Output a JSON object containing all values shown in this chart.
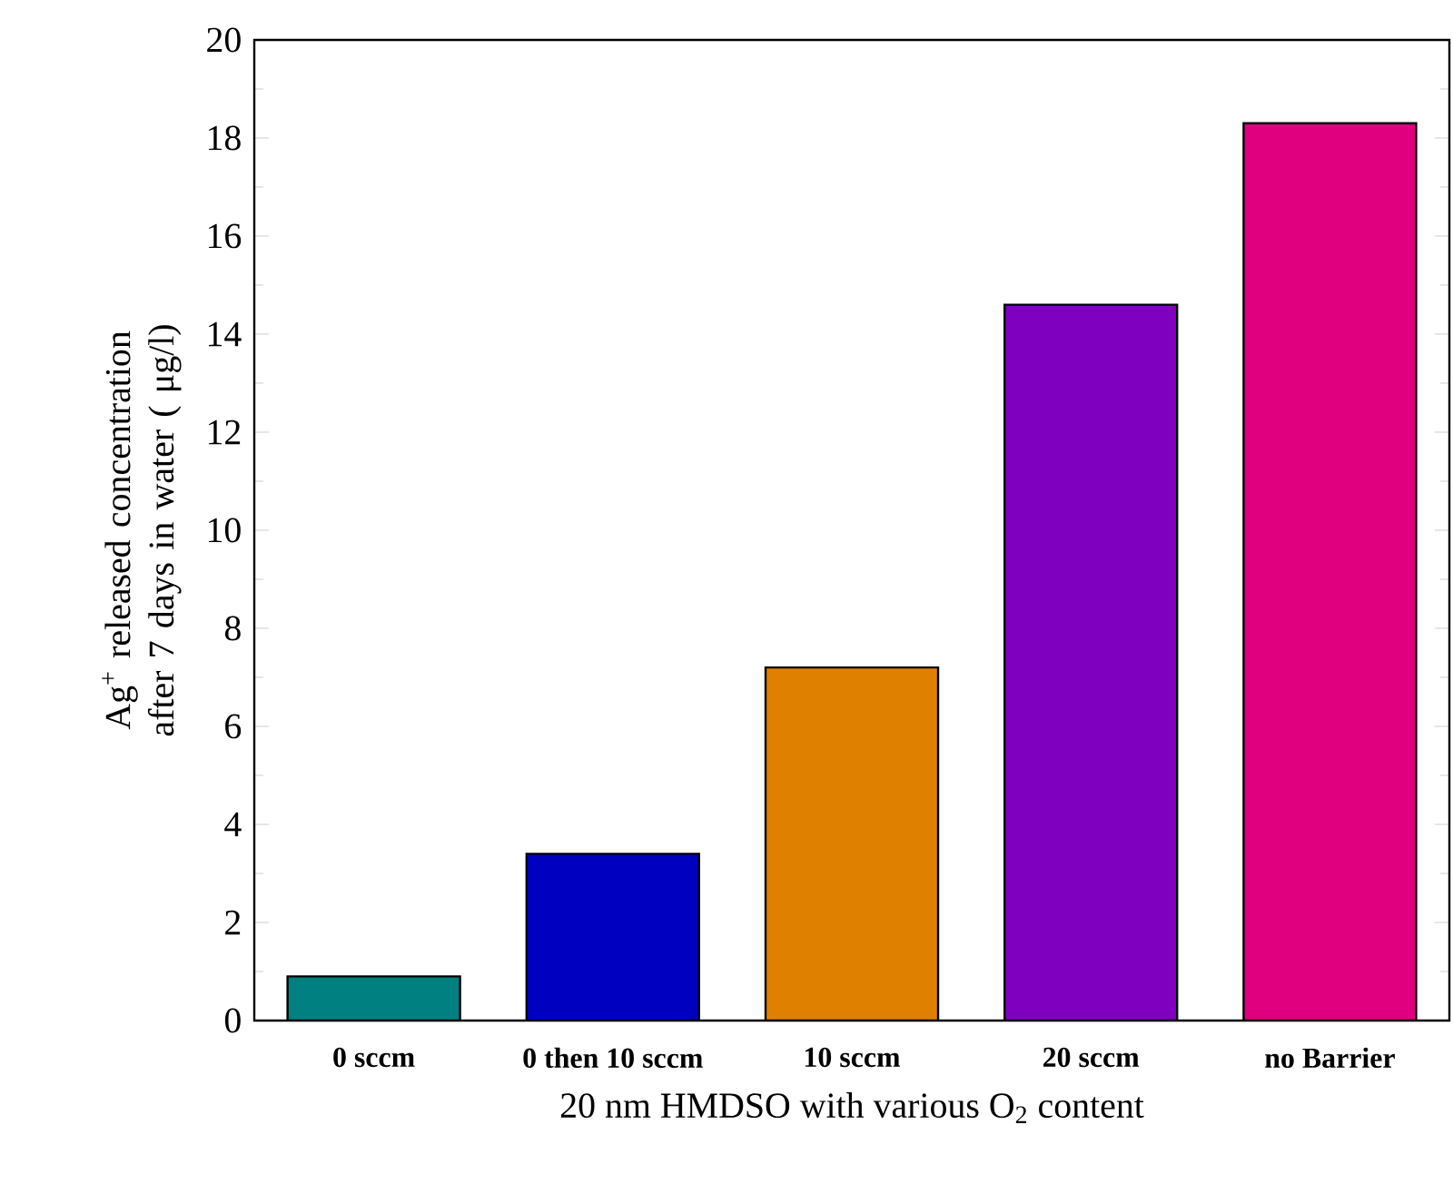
{
  "chart_data": {
    "type": "bar",
    "xlabel": "20 nm HMDSO with various O$_{2}$ content",
    "ylabel": "Ag$^{+}$ released concentration after 7 days in water ( μg/l)",
    "categories": [
      "0 sccm",
      "0 then 10 sccm",
      "10 sccm",
      "20 sccm",
      "no Barrier"
    ],
    "values": [
      0.9,
      3.4,
      7.2,
      14.6,
      18.3
    ],
    "colors": [
      "#008080",
      "#0000c0",
      "#e08000",
      "#8000c0",
      "#e0007f"
    ],
    "ylim": [
      0,
      20
    ],
    "yticks": [
      0,
      2,
      4,
      6,
      8,
      10,
      12,
      14,
      16,
      18,
      20
    ],
    "grid": false
  }
}
